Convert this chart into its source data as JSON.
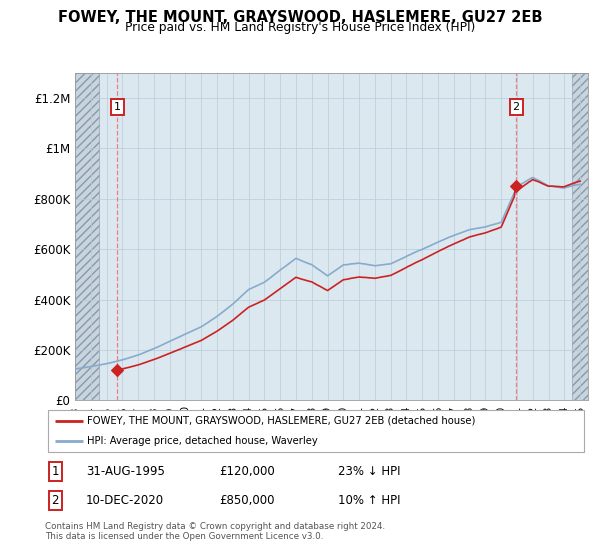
{
  "title": "FOWEY, THE MOUNT, GRAYSWOOD, HASLEMERE, GU27 2EB",
  "subtitle": "Price paid vs. HM Land Registry's House Price Index (HPI)",
  "ylim": [
    0,
    1300000
  ],
  "xlim_start": 1993.0,
  "xlim_end": 2025.5,
  "yticks": [
    0,
    200000,
    400000,
    600000,
    800000,
    1000000,
    1200000
  ],
  "ytick_labels": [
    "£0",
    "£200K",
    "£400K",
    "£600K",
    "£800K",
    "£1M",
    "£1.2M"
  ],
  "sale1_x": 1995.67,
  "sale1_y": 120000,
  "sale2_x": 2020.95,
  "sale2_y": 850000,
  "hatch_left_end": 1994.5,
  "hatch_right_start": 2024.5,
  "legend_line1": "FOWEY, THE MOUNT, GRAYSWOOD, HASLEMERE, GU27 2EB (detached house)",
  "legend_line2": "HPI: Average price, detached house, Waverley",
  "footer": "Contains HM Land Registry data © Crown copyright and database right 2024.\nThis data is licensed under the Open Government Licence v3.0.",
  "hatch_bg": "#c8d4de",
  "plot_bg": "#dce8f0",
  "grid_color": "#b8ccd8",
  "sale_line_color": "#dd4444",
  "hpi_line_color": "#88aacc",
  "price_line_color": "#cc2222"
}
